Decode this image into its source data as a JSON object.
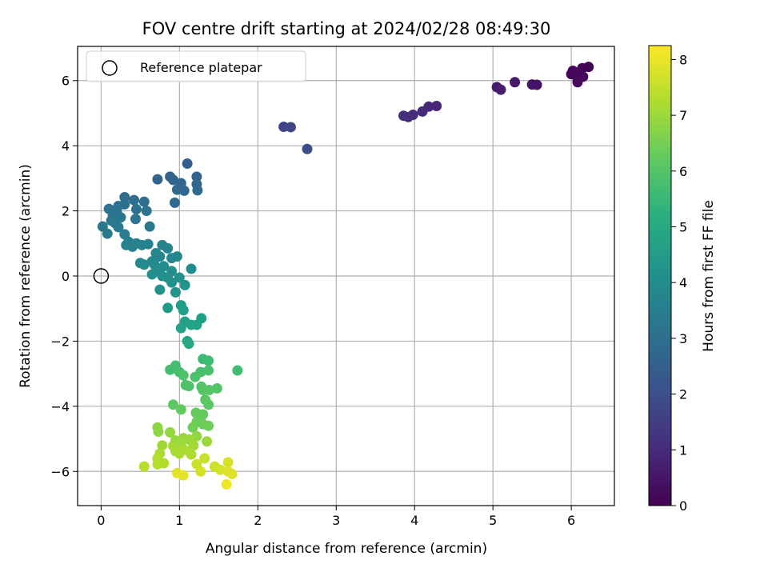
{
  "chart_data": {
    "type": "scatter",
    "title": "FOV centre drift starting at 2024/02/28 08:49:30",
    "xlabel": "Angular distance from reference (arcmin)",
    "ylabel": "Rotation from reference (arcmin)",
    "xlim": [
      -0.3,
      6.55
    ],
    "ylim": [
      -7.05,
      7.05
    ],
    "xticks": [
      0,
      1,
      2,
      3,
      4,
      5,
      6
    ],
    "yticks": [
      -6,
      -4,
      -2,
      0,
      2,
      4,
      6
    ],
    "grid": true,
    "legend": {
      "placement": "top-left",
      "entries": [
        "Reference platepar"
      ]
    },
    "reference_point": {
      "x": 0,
      "y": 0,
      "label": "Reference platepar"
    },
    "colorbar": {
      "label": "Hours from first FF file",
      "range": [
        0,
        8.25
      ],
      "ticks": [
        0,
        1,
        2,
        3,
        4,
        5,
        6,
        7,
        8
      ],
      "colormap": "viridis"
    },
    "points": [
      {
        "x": 6.22,
        "y": 6.42,
        "c": 0.0
      },
      {
        "x": 6.14,
        "y": 6.38,
        "c": 0.05
      },
      {
        "x": 6.03,
        "y": 6.28,
        "c": 0.08
      },
      {
        "x": 6.0,
        "y": 6.2,
        "c": 0.1
      },
      {
        "x": 6.06,
        "y": 6.15,
        "c": 0.12
      },
      {
        "x": 6.1,
        "y": 6.2,
        "c": 0.15
      },
      {
        "x": 6.15,
        "y": 6.12,
        "c": 0.18
      },
      {
        "x": 6.08,
        "y": 5.95,
        "c": 0.2
      },
      {
        "x": 6.02,
        "y": 6.3,
        "c": 0.22
      },
      {
        "x": 5.56,
        "y": 5.87,
        "c": 0.4
      },
      {
        "x": 5.5,
        "y": 5.88,
        "c": 0.45
      },
      {
        "x": 5.28,
        "y": 5.95,
        "c": 0.55
      },
      {
        "x": 5.05,
        "y": 5.8,
        "c": 0.6
      },
      {
        "x": 5.1,
        "y": 5.72,
        "c": 0.65
      },
      {
        "x": 4.28,
        "y": 5.22,
        "c": 0.9
      },
      {
        "x": 4.18,
        "y": 5.2,
        "c": 0.95
      },
      {
        "x": 4.1,
        "y": 5.05,
        "c": 1.0
      },
      {
        "x": 3.98,
        "y": 4.95,
        "c": 1.05
      },
      {
        "x": 3.86,
        "y": 4.92,
        "c": 1.1
      },
      {
        "x": 3.92,
        "y": 4.88,
        "c": 1.12
      },
      {
        "x": 2.33,
        "y": 4.58,
        "c": 1.7
      },
      {
        "x": 2.42,
        "y": 4.57,
        "c": 1.75
      },
      {
        "x": 2.63,
        "y": 3.9,
        "c": 1.85
      },
      {
        "x": 1.1,
        "y": 3.45,
        "c": 2.5
      },
      {
        "x": 1.22,
        "y": 3.05,
        "c": 2.55
      },
      {
        "x": 0.72,
        "y": 2.97,
        "c": 2.6
      },
      {
        "x": 0.88,
        "y": 3.05,
        "c": 2.62
      },
      {
        "x": 0.92,
        "y": 2.95,
        "c": 2.65
      },
      {
        "x": 1.02,
        "y": 2.85,
        "c": 2.7
      },
      {
        "x": 1.22,
        "y": 2.82,
        "c": 2.72
      },
      {
        "x": 0.97,
        "y": 2.65,
        "c": 2.75
      },
      {
        "x": 1.06,
        "y": 2.62,
        "c": 2.78
      },
      {
        "x": 1.23,
        "y": 2.63,
        "c": 2.8
      },
      {
        "x": 0.94,
        "y": 2.25,
        "c": 2.85
      },
      {
        "x": 0.3,
        "y": 2.42,
        "c": 2.9
      },
      {
        "x": 0.42,
        "y": 2.33,
        "c": 2.95
      },
      {
        "x": 0.55,
        "y": 2.28,
        "c": 3.0
      },
      {
        "x": 0.22,
        "y": 2.15,
        "c": 3.05
      },
      {
        "x": 0.3,
        "y": 2.2,
        "c": 3.07
      },
      {
        "x": 0.1,
        "y": 2.06,
        "c": 3.1
      },
      {
        "x": 0.45,
        "y": 2.05,
        "c": 3.12
      },
      {
        "x": 0.58,
        "y": 2.0,
        "c": 3.15
      },
      {
        "x": 0.2,
        "y": 1.95,
        "c": 3.18
      },
      {
        "x": 0.15,
        "y": 1.85,
        "c": 3.2
      },
      {
        "x": 0.25,
        "y": 1.8,
        "c": 3.22
      },
      {
        "x": 0.44,
        "y": 1.75,
        "c": 3.25
      },
      {
        "x": 0.13,
        "y": 1.7,
        "c": 3.27
      },
      {
        "x": 0.18,
        "y": 1.62,
        "c": 3.3
      },
      {
        "x": 0.02,
        "y": 1.52,
        "c": 3.32
      },
      {
        "x": 0.22,
        "y": 1.5,
        "c": 3.35
      },
      {
        "x": 0.62,
        "y": 1.52,
        "c": 3.37
      },
      {
        "x": 0.08,
        "y": 1.3,
        "c": 3.4
      },
      {
        "x": 0.3,
        "y": 1.28,
        "c": 3.45
      },
      {
        "x": 0.35,
        "y": 1.05,
        "c": 3.55
      },
      {
        "x": 0.45,
        "y": 1.0,
        "c": 3.6
      },
      {
        "x": 0.32,
        "y": 0.95,
        "c": 3.62
      },
      {
        "x": 0.52,
        "y": 0.95,
        "c": 3.65
      },
      {
        "x": 0.6,
        "y": 0.98,
        "c": 3.67
      },
      {
        "x": 0.4,
        "y": 0.9,
        "c": 3.7
      },
      {
        "x": 0.78,
        "y": 0.95,
        "c": 3.72
      },
      {
        "x": 0.85,
        "y": 0.85,
        "c": 3.75
      },
      {
        "x": 0.7,
        "y": 0.7,
        "c": 3.78
      },
      {
        "x": 0.75,
        "y": 0.6,
        "c": 3.8
      },
      {
        "x": 0.9,
        "y": 0.55,
        "c": 3.82
      },
      {
        "x": 0.97,
        "y": 0.6,
        "c": 3.85
      },
      {
        "x": 0.65,
        "y": 0.45,
        "c": 3.87
      },
      {
        "x": 0.5,
        "y": 0.4,
        "c": 3.9
      },
      {
        "x": 0.55,
        "y": 0.35,
        "c": 3.92
      },
      {
        "x": 0.68,
        "y": 0.35,
        "c": 3.95
      },
      {
        "x": 0.8,
        "y": 0.3,
        "c": 3.97
      },
      {
        "x": 1.15,
        "y": 0.22,
        "c": 4.0
      },
      {
        "x": 0.72,
        "y": 0.2,
        "c": 4.02
      },
      {
        "x": 0.9,
        "y": 0.15,
        "c": 4.05
      },
      {
        "x": 0.65,
        "y": 0.05,
        "c": 4.07
      },
      {
        "x": 0.78,
        "y": 0.0,
        "c": 4.1
      },
      {
        "x": 0.85,
        "y": -0.05,
        "c": 4.12
      },
      {
        "x": 1.0,
        "y": -0.05,
        "c": 4.15
      },
      {
        "x": 0.9,
        "y": -0.2,
        "c": 4.17
      },
      {
        "x": 1.07,
        "y": -0.28,
        "c": 4.2
      },
      {
        "x": 0.75,
        "y": -0.42,
        "c": 4.22
      },
      {
        "x": 0.95,
        "y": -0.5,
        "c": 4.25
      },
      {
        "x": 0.85,
        "y": -0.98,
        "c": 4.5
      },
      {
        "x": 1.02,
        "y": -0.9,
        "c": 4.55
      },
      {
        "x": 1.05,
        "y": -1.05,
        "c": 4.6
      },
      {
        "x": 1.28,
        "y": -1.3,
        "c": 4.65
      },
      {
        "x": 1.07,
        "y": -1.4,
        "c": 4.7
      },
      {
        "x": 1.15,
        "y": -1.5,
        "c": 4.72
      },
      {
        "x": 1.22,
        "y": -1.5,
        "c": 4.75
      },
      {
        "x": 1.02,
        "y": -1.6,
        "c": 4.78
      },
      {
        "x": 1.1,
        "y": -2.0,
        "c": 4.85
      },
      {
        "x": 1.12,
        "y": -2.08,
        "c": 4.9
      },
      {
        "x": 1.3,
        "y": -2.55,
        "c": 5.6
      },
      {
        "x": 1.37,
        "y": -2.6,
        "c": 5.65
      },
      {
        "x": 1.74,
        "y": -2.9,
        "c": 5.7
      },
      {
        "x": 0.88,
        "y": -2.88,
        "c": 5.75
      },
      {
        "x": 0.95,
        "y": -2.75,
        "c": 5.78
      },
      {
        "x": 1.0,
        "y": -2.95,
        "c": 5.8
      },
      {
        "x": 1.27,
        "y": -2.95,
        "c": 5.82
      },
      {
        "x": 1.37,
        "y": -2.9,
        "c": 5.85
      },
      {
        "x": 1.2,
        "y": -3.1,
        "c": 5.88
      },
      {
        "x": 1.05,
        "y": -3.05,
        "c": 5.9
      },
      {
        "x": 1.08,
        "y": -3.35,
        "c": 5.92
      },
      {
        "x": 1.12,
        "y": -3.38,
        "c": 5.95
      },
      {
        "x": 1.28,
        "y": -3.4,
        "c": 5.97
      },
      {
        "x": 1.38,
        "y": -3.5,
        "c": 6.0
      },
      {
        "x": 1.48,
        "y": -3.45,
        "c": 6.02
      },
      {
        "x": 1.3,
        "y": -3.5,
        "c": 6.05
      },
      {
        "x": 1.33,
        "y": -3.8,
        "c": 6.1
      },
      {
        "x": 1.37,
        "y": -3.95,
        "c": 6.12
      },
      {
        "x": 0.92,
        "y": -3.95,
        "c": 6.15
      },
      {
        "x": 1.02,
        "y": -4.1,
        "c": 6.2
      },
      {
        "x": 1.21,
        "y": -4.2,
        "c": 6.25
      },
      {
        "x": 1.3,
        "y": -4.25,
        "c": 6.27
      },
      {
        "x": 1.27,
        "y": -4.35,
        "c": 6.3
      },
      {
        "x": 1.22,
        "y": -4.48,
        "c": 6.35
      },
      {
        "x": 1.3,
        "y": -4.55,
        "c": 6.38
      },
      {
        "x": 1.37,
        "y": -4.6,
        "c": 6.4
      },
      {
        "x": 1.17,
        "y": -4.65,
        "c": 6.45
      },
      {
        "x": 0.72,
        "y": -4.65,
        "c": 6.8
      },
      {
        "x": 0.73,
        "y": -4.78,
        "c": 6.85
      },
      {
        "x": 0.88,
        "y": -4.8,
        "c": 6.88
      },
      {
        "x": 1.22,
        "y": -4.92,
        "c": 6.9
      },
      {
        "x": 1.05,
        "y": -4.98,
        "c": 6.92
      },
      {
        "x": 0.95,
        "y": -5.05,
        "c": 6.95
      },
      {
        "x": 1.12,
        "y": -5.02,
        "c": 6.97
      },
      {
        "x": 1.35,
        "y": -5.08,
        "c": 7.0
      },
      {
        "x": 1.02,
        "y": -5.12,
        "c": 7.02
      },
      {
        "x": 0.78,
        "y": -5.2,
        "c": 7.05
      },
      {
        "x": 0.92,
        "y": -5.22,
        "c": 7.07
      },
      {
        "x": 1.18,
        "y": -5.2,
        "c": 7.1
      },
      {
        "x": 1.05,
        "y": -5.32,
        "c": 7.12
      },
      {
        "x": 0.95,
        "y": -5.38,
        "c": 7.15
      },
      {
        "x": 1.12,
        "y": -5.38,
        "c": 7.17
      },
      {
        "x": 1.0,
        "y": -5.45,
        "c": 7.2
      },
      {
        "x": 0.75,
        "y": -5.45,
        "c": 7.22
      },
      {
        "x": 1.15,
        "y": -5.48,
        "c": 7.25
      },
      {
        "x": 0.72,
        "y": -5.6,
        "c": 7.27
      },
      {
        "x": 0.8,
        "y": -5.75,
        "c": 7.3
      },
      {
        "x": 0.72,
        "y": -5.78,
        "c": 7.32
      },
      {
        "x": 0.55,
        "y": -5.85,
        "c": 7.35
      },
      {
        "x": 1.32,
        "y": -5.6,
        "c": 7.6
      },
      {
        "x": 1.22,
        "y": -5.78,
        "c": 7.62
      },
      {
        "x": 1.45,
        "y": -5.85,
        "c": 7.65
      },
      {
        "x": 1.52,
        "y": -5.95,
        "c": 7.7
      },
      {
        "x": 1.27,
        "y": -6.0,
        "c": 7.72
      },
      {
        "x": 1.62,
        "y": -5.72,
        "c": 7.75
      },
      {
        "x": 1.62,
        "y": -6.0,
        "c": 7.8
      },
      {
        "x": 1.67,
        "y": -6.08,
        "c": 7.85
      },
      {
        "x": 0.97,
        "y": -6.05,
        "c": 7.9
      },
      {
        "x": 1.05,
        "y": -6.12,
        "c": 7.95
      },
      {
        "x": 1.6,
        "y": -6.4,
        "c": 8.1
      }
    ]
  }
}
